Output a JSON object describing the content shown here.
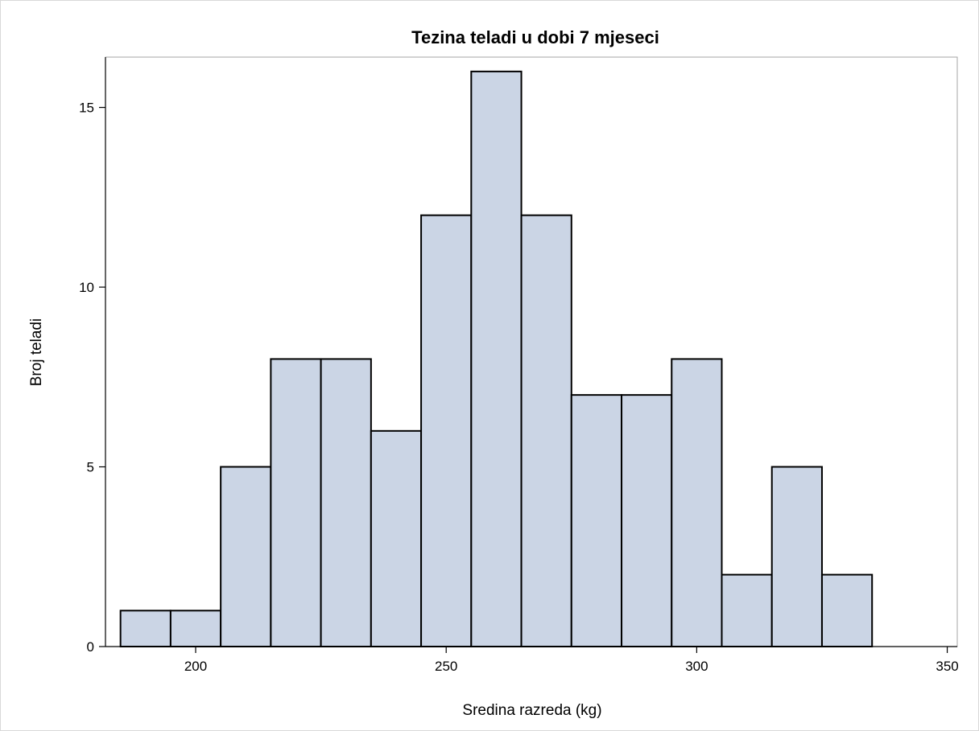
{
  "chart_data": {
    "type": "bar",
    "title": "Tezina teladi u dobi 7 mjeseci",
    "xlabel": "Sredina razreda (kg)",
    "ylabel": "Broj teladi",
    "bin_width": 10,
    "midpoints": [
      190,
      200,
      210,
      220,
      230,
      240,
      250,
      260,
      270,
      280,
      290,
      300,
      310,
      320,
      330
    ],
    "values": [
      1,
      1,
      5,
      8,
      8,
      6,
      12,
      16,
      12,
      7,
      7,
      8,
      2,
      5,
      2
    ],
    "xlim": [
      182,
      352
    ],
    "ylim": [
      0,
      16.4
    ],
    "xticks": [
      200,
      250,
      300,
      350
    ],
    "yticks": [
      0,
      5,
      10,
      15
    ],
    "grid": false,
    "colors": {
      "bar_fill": "#cbd5e5",
      "bar_edge": "#000000",
      "frame": "#a6a6a6"
    }
  }
}
